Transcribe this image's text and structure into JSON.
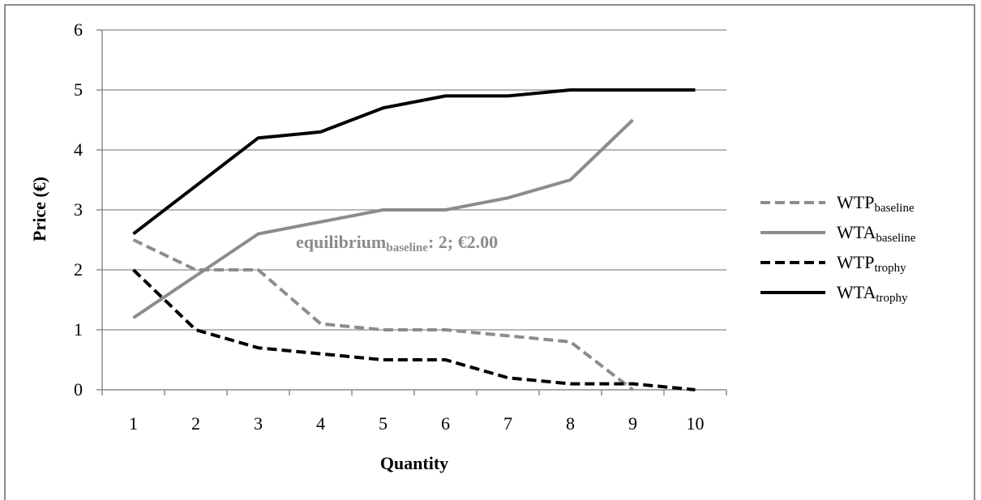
{
  "chart_data": {
    "type": "line",
    "title": "",
    "xlabel": "Quantity",
    "ylabel": "Price (€)",
    "categories": [
      1,
      2,
      3,
      4,
      5,
      6,
      7,
      8,
      9,
      10
    ],
    "ylim": [
      0,
      6
    ],
    "yticks": [
      0,
      1,
      2,
      3,
      4,
      5,
      6
    ],
    "grid": true,
    "legend_position": "right",
    "series": [
      {
        "name": "WTP",
        "name_sub": "baseline",
        "color": "#8c8c8c",
        "style": "dashed",
        "values": [
          2.5,
          2.0,
          2.0,
          1.1,
          1.0,
          1.0,
          0.9,
          0.8,
          0.0,
          null
        ]
      },
      {
        "name": "WTA",
        "name_sub": "baseline",
        "color": "#8c8c8c",
        "style": "solid",
        "values": [
          1.2,
          1.9,
          2.6,
          2.8,
          3.0,
          3.0,
          3.2,
          3.5,
          4.5,
          null
        ]
      },
      {
        "name": "WTP",
        "name_sub": "trophy",
        "color": "#000000",
        "style": "dashed",
        "values": [
          2.0,
          1.0,
          0.7,
          0.6,
          0.5,
          0.5,
          0.2,
          0.1,
          0.1,
          0.0
        ]
      },
      {
        "name": "WTA",
        "name_sub": "trophy",
        "color": "#000000",
        "style": "solid",
        "values": [
          2.6,
          3.4,
          4.2,
          4.3,
          4.7,
          4.9,
          4.9,
          5.0,
          5.0,
          5.0
        ]
      }
    ],
    "annotations": [
      {
        "text_main": "equilibrium",
        "text_sub": "baseline",
        "text_rest": ": 2; €2.00",
        "color": "#8c8c8c",
        "x": 4.5,
        "y": 2.55
      }
    ]
  }
}
